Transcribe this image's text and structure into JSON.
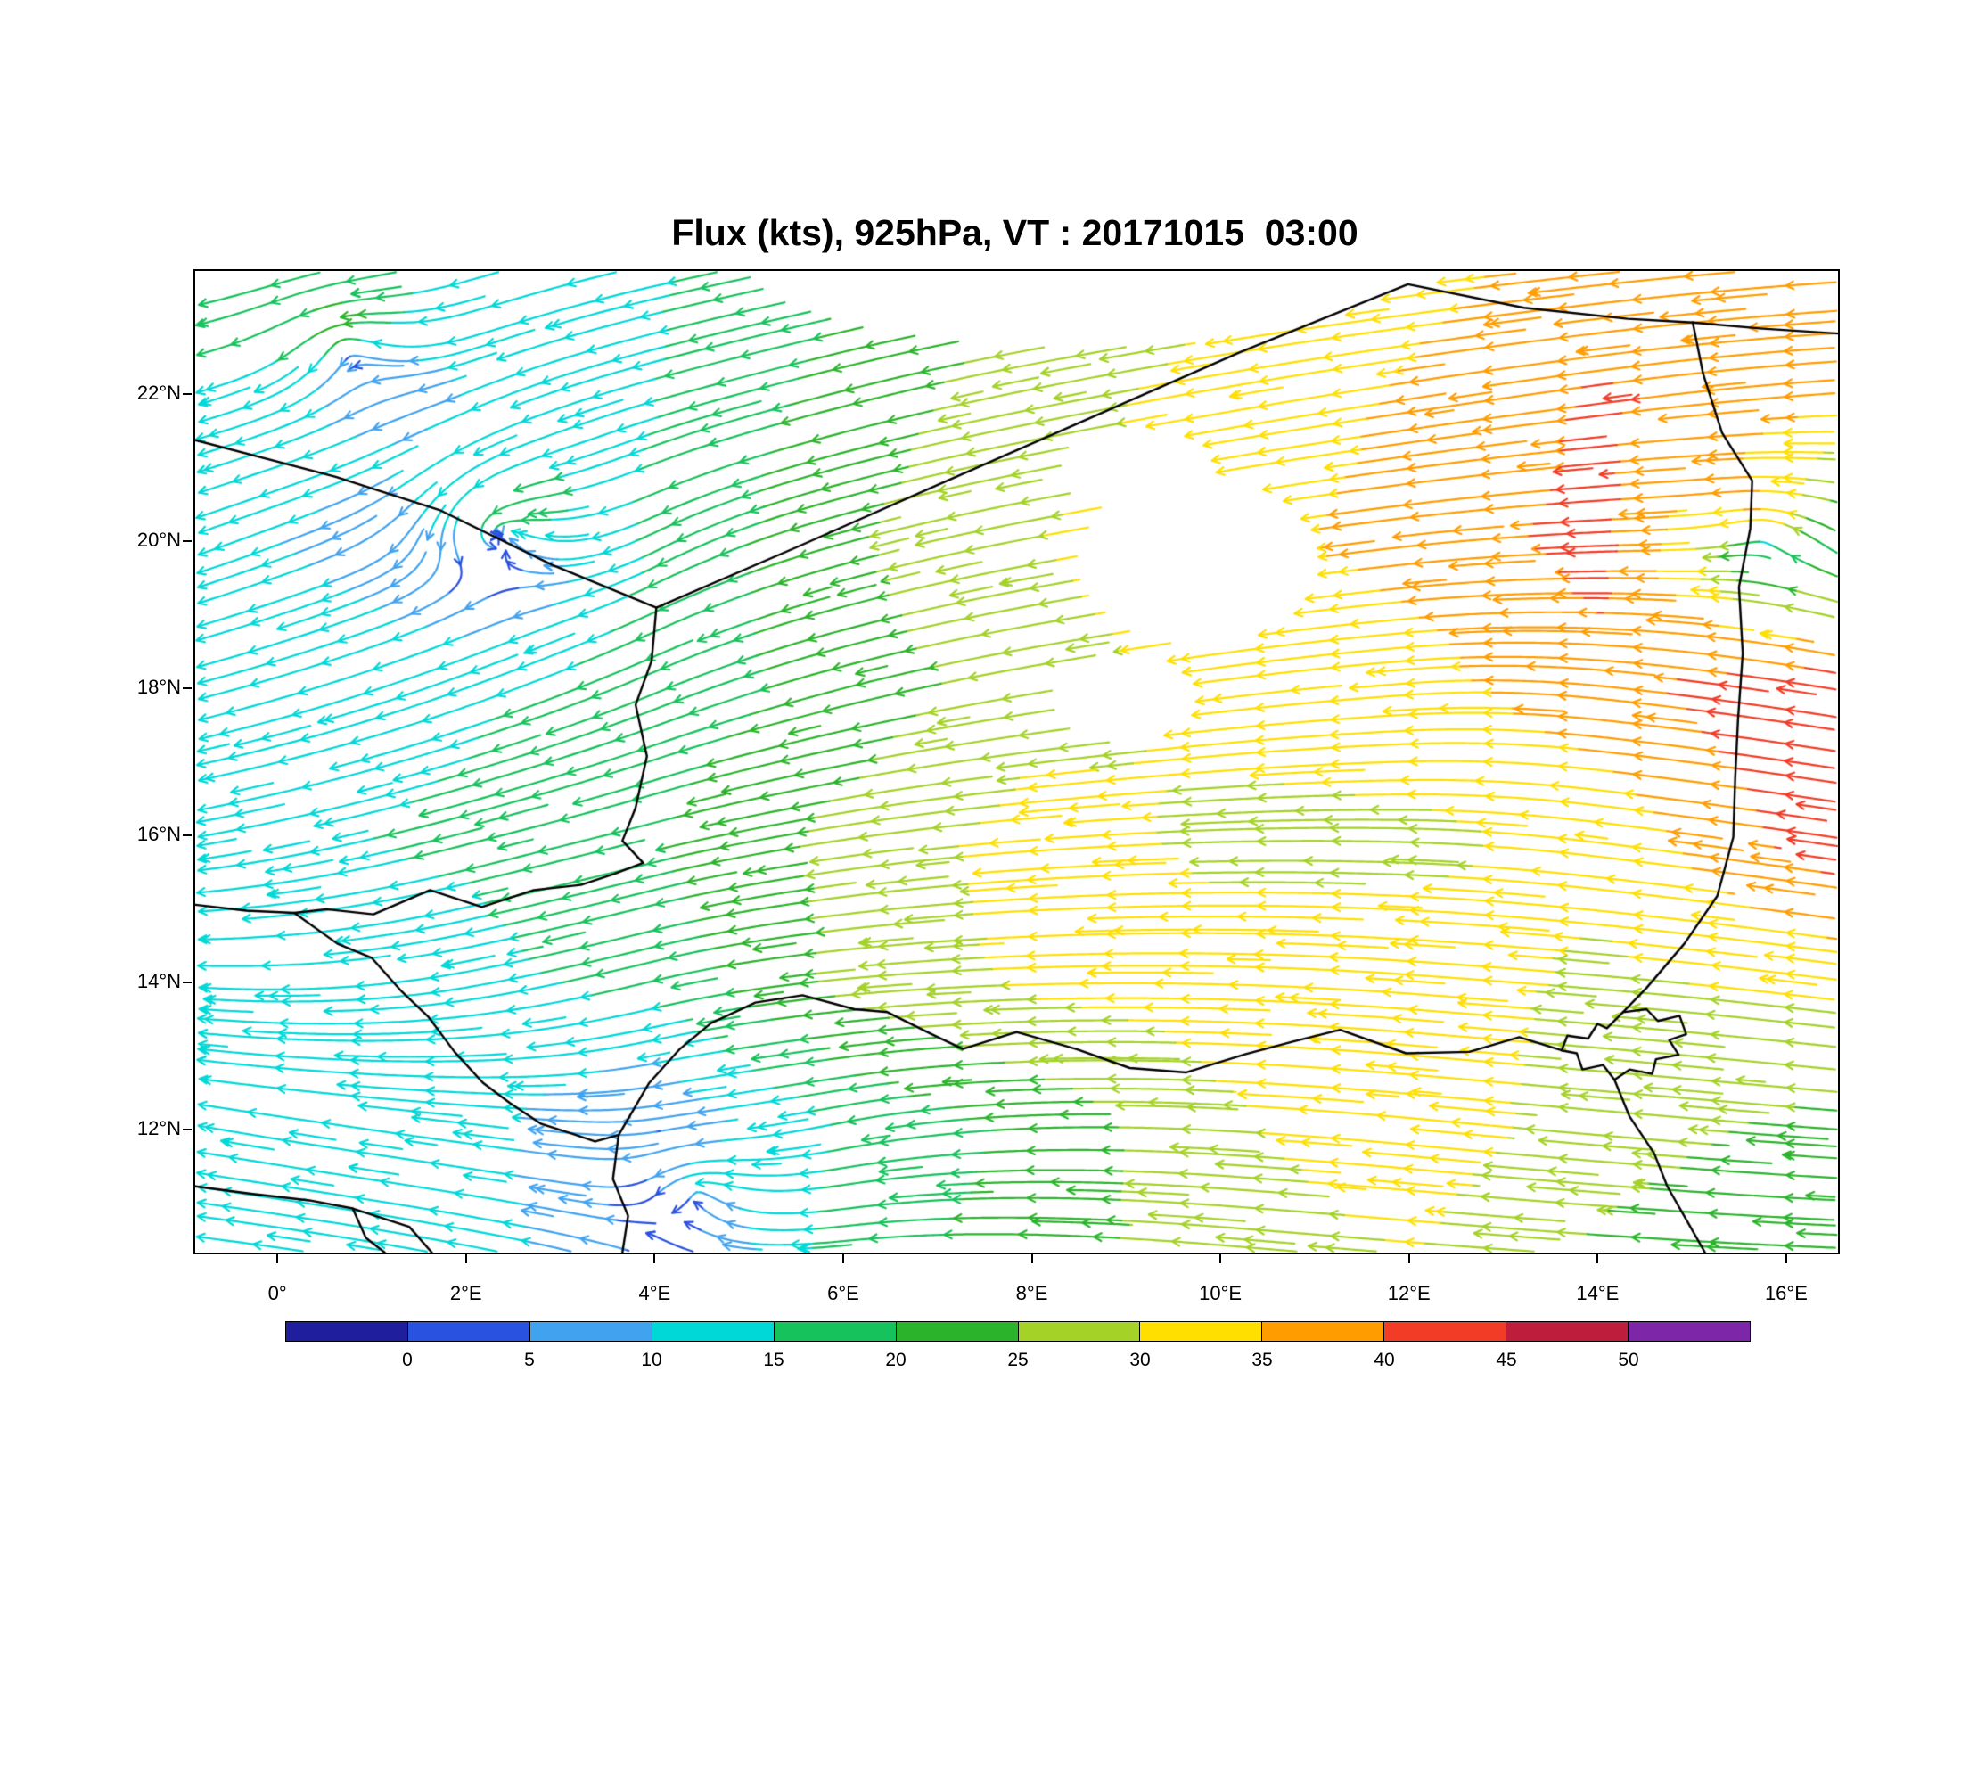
{
  "title": "Flux (kts), 925hPa, VT : 20171015  03:00",
  "chart_data": {
    "type": "streamline-map",
    "variable": "Flux",
    "units": "kts",
    "pressure_level": "925hPa",
    "valid_time": "20171015 03:00",
    "extent": {
      "lon_min": -0.89,
      "lon_max": 16.53,
      "lat_min": 10.35,
      "lat_max": 23.7
    },
    "x_ticks": [
      {
        "label": "0°",
        "lon": 0
      },
      {
        "label": "2°E",
        "lon": 2
      },
      {
        "label": "4°E",
        "lon": 4
      },
      {
        "label": "6°E",
        "lon": 6
      },
      {
        "label": "8°E",
        "lon": 8
      },
      {
        "label": "10°E",
        "lon": 10
      },
      {
        "label": "12°E",
        "lon": 12
      },
      {
        "label": "14°E",
        "lon": 14
      },
      {
        "label": "16°E",
        "lon": 16
      }
    ],
    "y_ticks": [
      {
        "label": "22°N",
        "lat": 22
      },
      {
        "label": "20°N",
        "lat": 20
      },
      {
        "label": "18°N",
        "lat": 18
      },
      {
        "label": "16°N",
        "lat": 16
      },
      {
        "label": "14°N",
        "lat": 14
      },
      {
        "label": "12°N",
        "lat": 12
      }
    ],
    "speed_levels": [
      0,
      5,
      10,
      15,
      20,
      25,
      30,
      35,
      40,
      45,
      50
    ],
    "colorbar_labels": [
      "0",
      "5",
      "10",
      "15",
      "20",
      "25",
      "30",
      "35",
      "40",
      "45",
      "50"
    ],
    "palette": [
      "#1F1F9E",
      "#2A52E0",
      "#41A3F0",
      "#00D8D8",
      "#16C25C",
      "#2BB42B",
      "#A4D227",
      "#FFDF00",
      "#FF9D00",
      "#F23C26",
      "#BE1E3C",
      "#7D26A8"
    ],
    "grid": {
      "lons": [
        -0.89,
        2,
        4,
        6,
        8,
        10,
        12,
        14,
        16.53
      ],
      "lats": [
        10.35,
        12,
        14,
        16,
        18,
        20,
        22,
        23.7
      ],
      "u": [
        [
          -13,
          -12,
          -4,
          -17,
          -23,
          -27,
          -30,
          -24,
          -21
        ],
        [
          -13,
          -12,
          -4,
          -15,
          -21,
          -29,
          -33,
          -27,
          -23
        ],
        [
          -14,
          -13,
          -16,
          -26,
          -31,
          -32,
          -32,
          -29,
          -31
        ],
        [
          -13,
          -15,
          -19,
          -26,
          -32,
          -29,
          -29,
          -31,
          -43
        ],
        [
          -12,
          -13,
          -15,
          -21,
          -27,
          -31,
          -33,
          -38,
          -44
        ],
        [
          -11,
          -5,
          -13,
          -23,
          -29,
          -33,
          -36,
          -42,
          -14
        ],
        [
          -14,
          -9,
          -14,
          -21,
          -27,
          -31,
          -35,
          -40,
          -37
        ],
        [
          -15,
          -13,
          -14,
          -19,
          -25,
          -29,
          -33,
          -37,
          -35
        ]
      ],
      "v": [
        [
          2,
          3,
          2,
          -2,
          1,
          3,
          3,
          2,
          1
        ],
        [
          3,
          2,
          0,
          -4,
          -1,
          2,
          4,
          3,
          2
        ],
        [
          1,
          -3,
          -5,
          -3,
          -1,
          1,
          3,
          3,
          5
        ],
        [
          -3,
          -5,
          -6,
          -5,
          -3,
          -1,
          1,
          5,
          8
        ],
        [
          -4,
          -6,
          -8,
          -7,
          -6,
          -5,
          -3,
          5,
          9
        ],
        [
          -5,
          -3,
          -9,
          -8,
          -7,
          -7,
          -5,
          -2,
          7
        ],
        [
          -5,
          -5,
          -5,
          -7,
          -7,
          -7,
          -7,
          -7,
          -3
        ],
        [
          -4,
          -5,
          -4,
          -5,
          -5,
          -5,
          -5,
          -5,
          -3
        ]
      ]
    },
    "vortices": [
      {
        "lon": 2.35,
        "lat": 20.15,
        "tangential": 9,
        "inflow": 6,
        "radius": 1.0
      },
      {
        "lon": 0.7,
        "lat": 22.7,
        "tangential": 9,
        "inflow": 0,
        "radius": 0.9
      },
      {
        "lon": 15.75,
        "lat": 20.15,
        "tangential": 10,
        "inflow": 0,
        "radius": 0.85
      },
      {
        "lon": 4.45,
        "lat": 11.15,
        "tangential": 5,
        "inflow": 2,
        "radius": 0.8
      }
    ],
    "gaps": [
      {
        "lon": 8.5,
        "lat": 23.85,
        "rx": 3.6,
        "ry": 1.2
      },
      {
        "lon": 9.75,
        "lat": 19.75,
        "rx": 1.3,
        "ry": 1.15
      },
      {
        "lon": 8.95,
        "lat": 17.9,
        "rx": 0.8,
        "ry": 0.62
      },
      {
        "lon": 9.1,
        "lat": 21.0,
        "rx": 0.85,
        "ry": 0.6
      }
    ],
    "borders": [
      {
        "name": "algeria-mali",
        "points": [
          [
            -0.89,
            21.4
          ],
          [
            0.6,
            20.9
          ],
          [
            1.7,
            20.45
          ],
          [
            2.9,
            19.7
          ],
          [
            4.0,
            19.12
          ]
        ]
      },
      {
        "name": "algeria-niger",
        "points": [
          [
            4.0,
            19.12
          ],
          [
            5.5,
            19.95
          ],
          [
            7.0,
            20.8
          ],
          [
            8.6,
            21.7
          ],
          [
            10.2,
            22.6
          ],
          [
            11.97,
            23.52
          ]
        ]
      },
      {
        "name": "niger-libya",
        "points": [
          [
            11.97,
            23.52
          ],
          [
            13.2,
            23.2
          ],
          [
            14.3,
            23.05
          ],
          [
            14.99,
            23.0
          ]
        ]
      },
      {
        "name": "libya-chad",
        "points": [
          [
            14.99,
            23.0
          ],
          [
            15.7,
            22.92
          ],
          [
            16.53,
            22.85
          ]
        ]
      },
      {
        "name": "niger-chad",
        "points": [
          [
            14.99,
            23.0
          ],
          [
            15.1,
            22.3
          ],
          [
            15.3,
            21.5
          ],
          [
            15.62,
            20.85
          ],
          [
            15.6,
            20.2
          ],
          [
            15.48,
            19.4
          ],
          [
            15.52,
            18.5
          ],
          [
            15.47,
            17.6
          ],
          [
            15.44,
            16.8
          ],
          [
            15.42,
            16.0
          ],
          [
            15.25,
            15.2
          ],
          [
            14.9,
            14.55
          ],
          [
            14.5,
            13.95
          ],
          [
            14.25,
            13.62
          ]
        ]
      },
      {
        "name": "lake-chad",
        "points": [
          [
            14.25,
            13.62
          ],
          [
            14.5,
            13.66
          ],
          [
            14.62,
            13.5
          ],
          [
            14.85,
            13.57
          ],
          [
            14.92,
            13.32
          ],
          [
            14.74,
            13.24
          ],
          [
            14.84,
            13.04
          ],
          [
            14.6,
            12.98
          ],
          [
            14.56,
            12.78
          ],
          [
            14.32,
            12.84
          ],
          [
            14.16,
            12.7
          ],
          [
            14.04,
            12.9
          ],
          [
            13.82,
            12.84
          ],
          [
            13.76,
            13.06
          ],
          [
            13.6,
            13.1
          ],
          [
            13.66,
            13.3
          ],
          [
            13.88,
            13.26
          ],
          [
            13.98,
            13.46
          ],
          [
            14.08,
            13.4
          ],
          [
            14.25,
            13.62
          ]
        ]
      },
      {
        "name": "chad-cameroon",
        "points": [
          [
            14.16,
            12.7
          ],
          [
            14.32,
            12.2
          ],
          [
            14.58,
            11.7
          ],
          [
            14.72,
            11.25
          ],
          [
            14.92,
            10.8
          ],
          [
            15.12,
            10.35
          ]
        ]
      },
      {
        "name": "mali-niger",
        "points": [
          [
            4.0,
            19.12
          ],
          [
            3.95,
            18.4
          ],
          [
            3.78,
            17.8
          ],
          [
            3.9,
            17.1
          ],
          [
            3.78,
            16.4
          ],
          [
            3.64,
            15.95
          ],
          [
            3.86,
            15.65
          ],
          [
            3.55,
            15.5
          ],
          [
            3.2,
            15.35
          ],
          [
            2.7,
            15.28
          ],
          [
            2.15,
            15.05
          ],
          [
            1.6,
            15.28
          ],
          [
            1.0,
            14.95
          ],
          [
            0.5,
            15.02
          ],
          [
            0.16,
            14.97
          ],
          [
            -0.35,
            15.0
          ],
          [
            -0.89,
            15.08
          ]
        ]
      },
      {
        "name": "niger-burkina-benin",
        "points": [
          [
            0.16,
            14.97
          ],
          [
            0.62,
            14.55
          ],
          [
            0.98,
            14.36
          ],
          [
            1.3,
            13.9
          ],
          [
            1.58,
            13.56
          ],
          [
            1.86,
            13.08
          ],
          [
            2.16,
            12.66
          ],
          [
            2.45,
            12.38
          ],
          [
            2.78,
            12.1
          ],
          [
            3.12,
            11.96
          ],
          [
            3.35,
            11.86
          ],
          [
            3.6,
            11.95
          ]
        ]
      },
      {
        "name": "benin-nigeria",
        "points": [
          [
            3.6,
            11.95
          ],
          [
            3.54,
            11.35
          ],
          [
            3.7,
            10.85
          ],
          [
            3.64,
            10.35
          ]
        ]
      },
      {
        "name": "niger-nigeria",
        "points": [
          [
            3.6,
            11.95
          ],
          [
            3.92,
            12.65
          ],
          [
            4.25,
            13.12
          ],
          [
            4.58,
            13.47
          ],
          [
            5.05,
            13.75
          ],
          [
            5.55,
            13.85
          ],
          [
            6.1,
            13.66
          ],
          [
            6.45,
            13.62
          ],
          [
            6.92,
            13.32
          ],
          [
            7.25,
            13.12
          ],
          [
            7.82,
            13.35
          ],
          [
            8.45,
            13.12
          ],
          [
            9.02,
            12.86
          ],
          [
            9.62,
            12.8
          ],
          [
            10.25,
            13.05
          ],
          [
            10.75,
            13.22
          ],
          [
            11.25,
            13.38
          ],
          [
            11.95,
            13.06
          ],
          [
            12.62,
            13.08
          ],
          [
            13.15,
            13.28
          ],
          [
            13.6,
            13.1
          ]
        ]
      },
      {
        "name": "togo-benin-corner",
        "points": [
          [
            -0.89,
            11.25
          ],
          [
            -0.3,
            11.15
          ],
          [
            0.32,
            11.06
          ],
          [
            0.78,
            10.95
          ],
          [
            0.92,
            10.55
          ],
          [
            1.12,
            10.35
          ]
        ]
      },
      {
        "name": "benin-corner-extra",
        "points": [
          [
            0.78,
            10.95
          ],
          [
            1.38,
            10.7
          ],
          [
            1.62,
            10.35
          ]
        ]
      }
    ]
  }
}
